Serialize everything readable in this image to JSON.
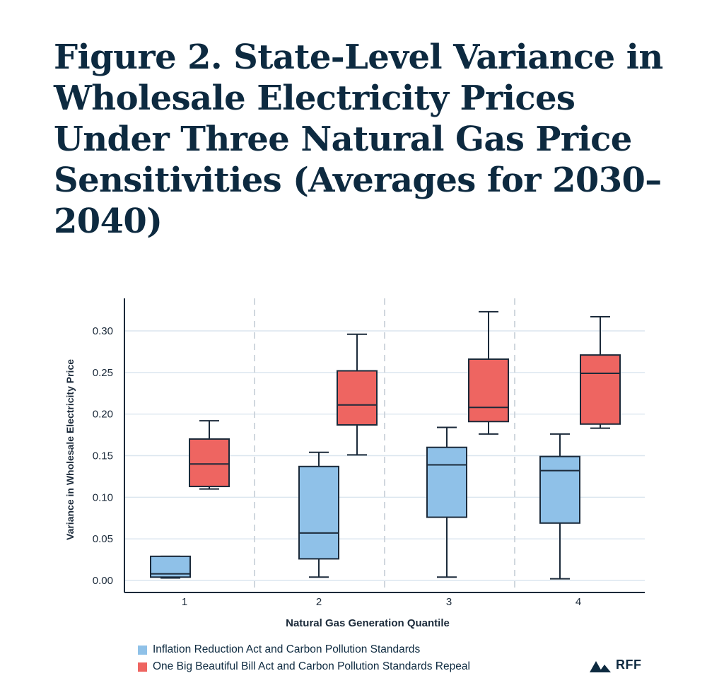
{
  "figure": {
    "title": "Figure 2. State-Level Variance in Wholesale Electricity Prices Under Three Natural Gas Price Sensitivities (Averages for 2030–2040)"
  },
  "colors": {
    "title": "#0d2a40",
    "axis": "#1b2a3a",
    "grid": "#dbe6ef",
    "divider": "#c5cdd6",
    "series_blue": "#8fc1e8",
    "series_red": "#ee6561"
  },
  "chart_data": {
    "type": "box",
    "xlabel": "Natural Gas Generation Quantile",
    "ylabel": "Variance in Wholesale Electricity Price",
    "categories": [
      "1",
      "2",
      "3",
      "4"
    ],
    "ylim": [
      -0.01,
      0.34
    ],
    "yticks": [
      0.0,
      0.05,
      0.1,
      0.15,
      0.2,
      0.25,
      0.3
    ],
    "ytick_labels": [
      "0.00",
      "0.05",
      "0.10",
      "0.15",
      "0.20",
      "0.25",
      "0.30"
    ],
    "grid": true,
    "series": [
      {
        "name": "Inflation Reduction Act and Carbon Pollution Standards",
        "color": "#8fc1e8",
        "boxes": [
          {
            "min": 0.003,
            "q1": 0.004,
            "median": 0.008,
            "q3": 0.029,
            "max": 0.029
          },
          {
            "min": 0.004,
            "q1": 0.026,
            "median": 0.057,
            "q3": 0.137,
            "max": 0.154
          },
          {
            "min": 0.004,
            "q1": 0.076,
            "median": 0.139,
            "q3": 0.16,
            "max": 0.184
          },
          {
            "min": 0.002,
            "q1": 0.069,
            "median": 0.132,
            "q3": 0.149,
            "max": 0.176
          }
        ]
      },
      {
        "name": "One Big Beautiful Bill Act and Carbon Pollution Standards Repeal",
        "color": "#ee6561",
        "boxes": [
          {
            "min": 0.11,
            "q1": 0.113,
            "median": 0.14,
            "q3": 0.17,
            "max": 0.192
          },
          {
            "min": 0.151,
            "q1": 0.187,
            "median": 0.211,
            "q3": 0.252,
            "max": 0.296
          },
          {
            "min": 0.176,
            "q1": 0.191,
            "median": 0.208,
            "q3": 0.266,
            "max": 0.323
          },
          {
            "min": 0.183,
            "q1": 0.188,
            "median": 0.249,
            "q3": 0.271,
            "max": 0.317
          }
        ]
      }
    ]
  },
  "legend": {
    "items": [
      {
        "label": "Inflation Reduction Act and Carbon Pollution Standards",
        "color": "#8fc1e8"
      },
      {
        "label": "One Big Beautiful Bill Act and Carbon Pollution Standards Repeal",
        "color": "#ee6561"
      }
    ]
  },
  "logo": {
    "text": "RFF",
    "icon": "mountains-icon"
  }
}
